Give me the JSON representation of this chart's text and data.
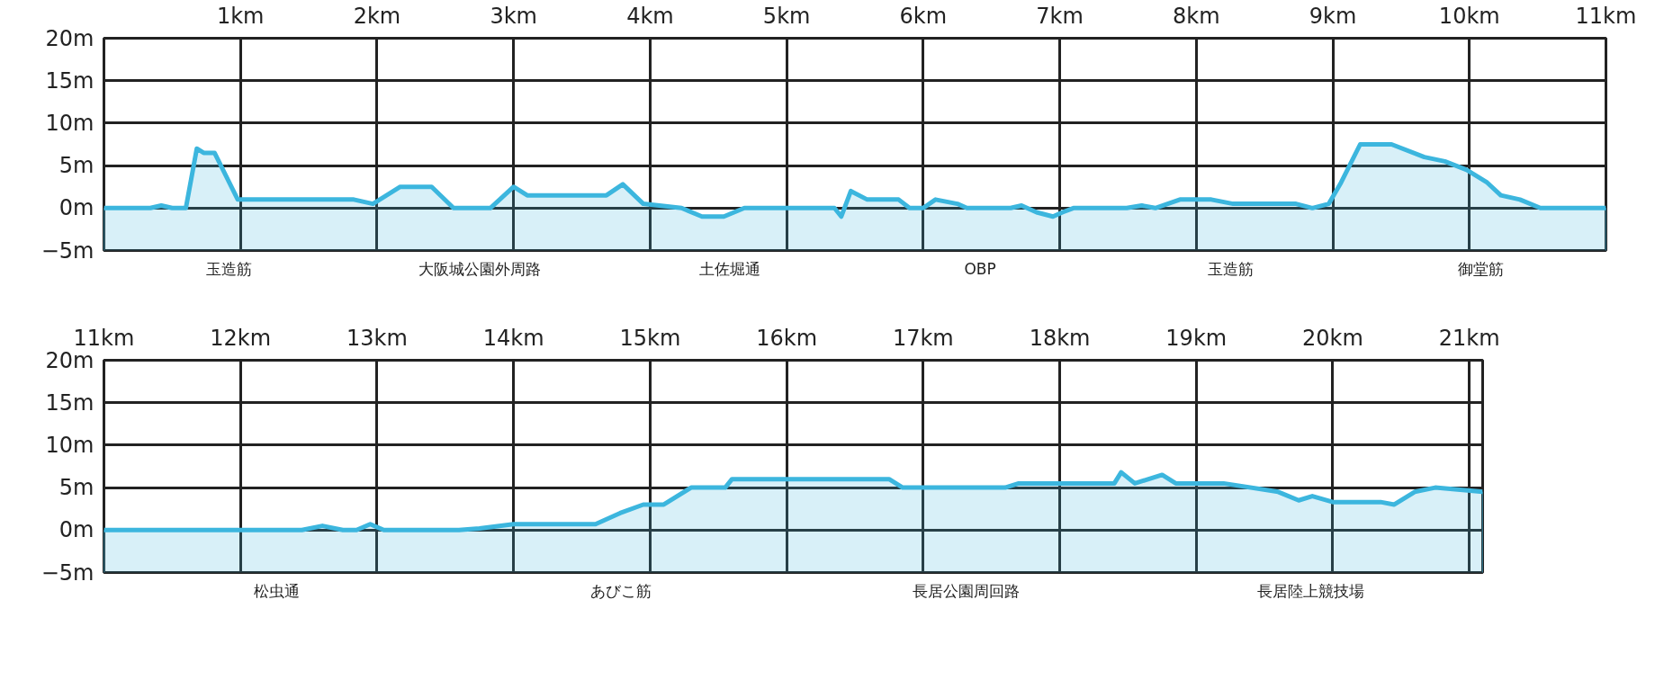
{
  "chart_data": [
    {
      "type": "area",
      "xlim": [
        0,
        11
      ],
      "ylim": [
        -5,
        20
      ],
      "xticks": [
        {
          "value": 0,
          "label": null
        },
        {
          "value": 1,
          "label": "1km"
        },
        {
          "value": 2,
          "label": "2km"
        },
        {
          "value": 3,
          "label": "3km"
        },
        {
          "value": 4,
          "label": "4km"
        },
        {
          "value": 5,
          "label": "5km"
        },
        {
          "value": 6,
          "label": "6km"
        },
        {
          "value": 7,
          "label": "7km"
        },
        {
          "value": 8,
          "label": "8km"
        },
        {
          "value": 9,
          "label": "9km"
        },
        {
          "value": 10,
          "label": "10km"
        },
        {
          "value": 11,
          "label": "11km"
        }
      ],
      "yticks": [
        {
          "value": -5,
          "label": "−5m"
        },
        {
          "value": 0,
          "label": "0m"
        },
        {
          "value": 5,
          "label": "5m"
        },
        {
          "value": 10,
          "label": "10m"
        },
        {
          "value": 15,
          "label": "15m"
        },
        {
          "value": 20,
          "label": "20m"
        }
      ],
      "grid": true,
      "series": [
        {
          "color": "#3cb6de",
          "x": [
            0,
            0.34,
            0.42,
            0.5,
            0.6,
            0.68,
            0.73,
            0.81,
            0.98,
            1.6,
            1.83,
            1.97,
            2.17,
            2.4,
            2.56,
            2.83,
            3.0,
            3.1,
            3.45,
            3.68,
            3.8,
            3.95,
            4.23,
            4.38,
            4.54,
            4.69,
            5.35,
            5.4,
            5.47,
            5.59,
            5.82,
            5.9,
            6.0,
            6.09,
            6.25,
            6.32,
            6.64,
            6.72,
            6.83,
            6.95,
            7.02,
            7.1,
            7.49,
            7.6,
            7.7,
            7.88,
            8.11,
            8.27,
            8.73,
            8.85,
            8.97,
            9.06,
            9.2,
            9.43,
            9.67,
            9.82,
            9.98,
            10.13,
            10.23,
            10.37,
            10.52,
            11
          ],
          "values": [
            0,
            0,
            0.3,
            0,
            0,
            7,
            6.5,
            6.5,
            1,
            1,
            1,
            0.5,
            2.5,
            2.5,
            0,
            0,
            2.5,
            1.5,
            1.5,
            1.5,
            2.8,
            0.5,
            0,
            -1,
            -1,
            0,
            0,
            -1,
            2,
            1,
            1,
            0,
            0,
            1,
            0.5,
            0,
            0,
            0.3,
            -0.5,
            -1,
            -0.5,
            0,
            0,
            0.3,
            0,
            1,
            1,
            0.5,
            0.5,
            0,
            0.5,
            3,
            7.5,
            7.5,
            6,
            5.5,
            4.5,
            3,
            1.5,
            1,
            0,
            0
          ]
        }
      ],
      "annotations": [
        "玉造筋",
        "大阪城公園外周路",
        "土佐堀通",
        "OBP",
        "玉造筋",
        "御堂筋"
      ]
    },
    {
      "type": "area",
      "xlim": [
        11,
        21.0975
      ],
      "ylim": [
        -5,
        20
      ],
      "xticks": [
        {
          "value": 11,
          "label": "11km"
        },
        {
          "value": 12,
          "label": "12km"
        },
        {
          "value": 13,
          "label": "13km"
        },
        {
          "value": 14,
          "label": "14km"
        },
        {
          "value": 15,
          "label": "15km"
        },
        {
          "value": 16,
          "label": "16km"
        },
        {
          "value": 17,
          "label": "17km"
        },
        {
          "value": 18,
          "label": "18km"
        },
        {
          "value": 19,
          "label": "19km"
        },
        {
          "value": 20,
          "label": "20km"
        },
        {
          "value": 21,
          "label": "21km"
        }
      ],
      "yticks": [
        {
          "value": -5,
          "label": "−5m"
        },
        {
          "value": 0,
          "label": "0m"
        },
        {
          "value": 5,
          "label": "5m"
        },
        {
          "value": 10,
          "label": "10m"
        },
        {
          "value": 15,
          "label": "15m"
        },
        {
          "value": 20,
          "label": "20m"
        }
      ],
      "grid": true,
      "series": [
        {
          "color": "#3cb6de",
          "x": [
            11,
            12.45,
            12.6,
            12.75,
            12.85,
            12.95,
            13.05,
            13.6,
            13.75,
            14.0,
            14.6,
            14.78,
            14.95,
            15.1,
            15.3,
            15.55,
            15.6,
            16.75,
            16.85,
            17.6,
            17.7,
            18.4,
            18.45,
            18.55,
            18.75,
            18.85,
            19.2,
            19.6,
            19.75,
            19.85,
            20.0,
            20.35,
            20.45,
            20.6,
            20.75,
            21.0975
          ],
          "values": [
            0,
            0,
            0.5,
            0,
            0,
            0.7,
            0,
            0,
            0.2,
            0.7,
            0.7,
            2,
            3,
            3,
            5,
            5,
            6,
            6,
            5,
            5,
            5.5,
            5.5,
            6.8,
            5.5,
            6.5,
            5.5,
            5.5,
            4.5,
            3.5,
            4,
            3.3,
            3.3,
            3,
            4.5,
            5,
            4.5
          ]
        }
      ],
      "annotations": [
        "松虫通",
        "あびこ筋",
        "長居公園周回路",
        "長居陸上競技場"
      ]
    }
  ]
}
